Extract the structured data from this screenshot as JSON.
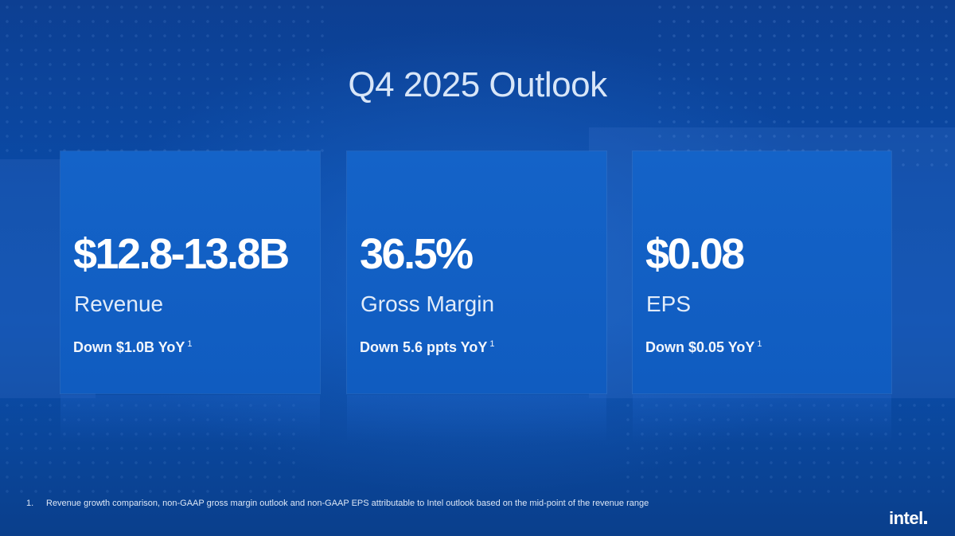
{
  "slide": {
    "title": "Q4 2025 Outlook",
    "cards": [
      {
        "value": "$12.8-13.8B",
        "label": "Revenue",
        "note": "Down $1.0B YoY",
        "note_ref": "1"
      },
      {
        "value": "36.5%",
        "label": "Gross Margin",
        "note": "Down 5.6 ppts YoY",
        "note_ref": "1"
      },
      {
        "value": "$0.08",
        "label": "EPS",
        "note": "Down $0.05 YoY",
        "note_ref": "1"
      }
    ],
    "footnote": {
      "number": "1.",
      "text": "Revenue growth comparison, non-GAAP gross margin outlook and non-GAAP EPS attributable to Intel outlook based on the mid-point of the revenue range"
    },
    "logo": "intel"
  }
}
